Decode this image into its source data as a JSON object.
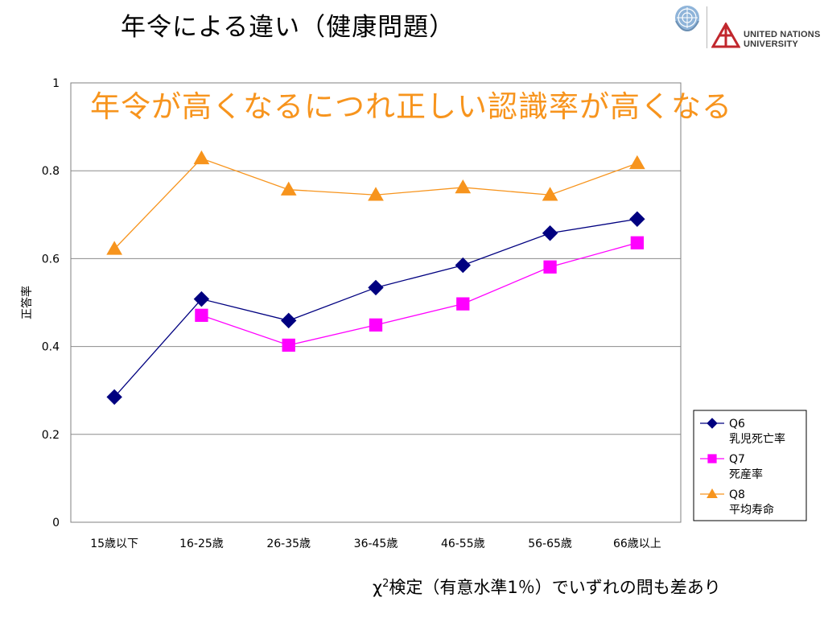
{
  "slide": {
    "title": "年令による違い（健康問題）",
    "headline": "年令が高くなるにつれ正しい認識率が高くなる",
    "footnote_symbol": "χ",
    "footnote_superscript": "2",
    "footnote_text": "検定（有意水準1％）でいずれの問も差あり"
  },
  "logo": {
    "org_line1": "UNITED NATIONS",
    "org_line2": "UNIVERSITY",
    "emblem_icon": "un-emblem-icon",
    "mark_icon": "unu-mark-icon"
  },
  "chart_data": {
    "type": "line",
    "categories": [
      "15歳以下",
      "16-25歳",
      "26-35歳",
      "36-45歳",
      "46-55歳",
      "56-65歳",
      "66歳以上"
    ],
    "ylabel": "正答率",
    "ylim": [
      0,
      1
    ],
    "yticks": [
      "0",
      "0.2",
      "0.4",
      "0.6",
      "0.8",
      "1"
    ],
    "grid": true,
    "legend_position": "right",
    "series": [
      {
        "name_line1": "Q6",
        "name_line2": "乳児死亡率",
        "marker": "diamond",
        "color": "#000080",
        "values": [
          0.285,
          0.508,
          0.459,
          0.534,
          0.585,
          0.658,
          0.69
        ]
      },
      {
        "name_line1": "Q7",
        "name_line2": "死産率",
        "marker": "square",
        "color": "#FF00FF",
        "values": [
          null,
          0.471,
          0.403,
          0.449,
          0.497,
          0.581,
          0.636
        ]
      },
      {
        "name_line1": "Q8",
        "name_line2": "平均寿命",
        "marker": "triangle",
        "color": "#F7941D",
        "values": [
          0.622,
          0.828,
          0.757,
          0.745,
          0.762,
          0.745,
          0.817
        ]
      }
    ]
  }
}
